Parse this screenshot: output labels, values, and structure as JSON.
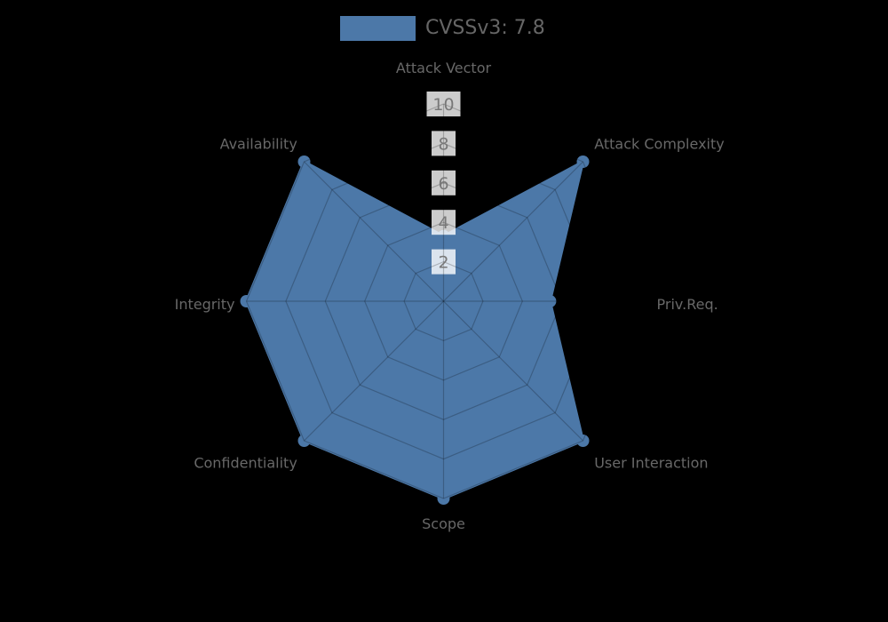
{
  "figure": {
    "background": "#000000",
    "legend": {
      "label": "CVSSv3: 7.8",
      "swatch_color": "#4c78a8",
      "text_color": "#666666"
    }
  },
  "chart_data": {
    "type": "radar",
    "title": "",
    "categories": [
      "Attack Vector",
      "Attack Complexity",
      "Priv.Req.",
      "User Interaction",
      "Scope",
      "Confidentiality",
      "Integrity",
      "Availability"
    ],
    "series": [
      {
        "name": "CVSSv3: 7.8",
        "values": [
          3.3,
          10,
          5.4,
          10,
          10,
          10,
          10,
          10
        ]
      }
    ],
    "radial_ticks": [
      2,
      4,
      6,
      8,
      10
    ],
    "rlim": [
      0,
      10
    ],
    "start_angle": "top",
    "direction": "clockwise",
    "grid": true,
    "legend_position": "top-center",
    "colors": {
      "fill": "#4c78a8",
      "stroke": "#4c78a8",
      "grid_line": "rgba(0,0,0,0.22)",
      "axis_label": "#686868",
      "tick_text": "#787878",
      "tick_box": "rgba(255,255,255,0.8)"
    }
  }
}
